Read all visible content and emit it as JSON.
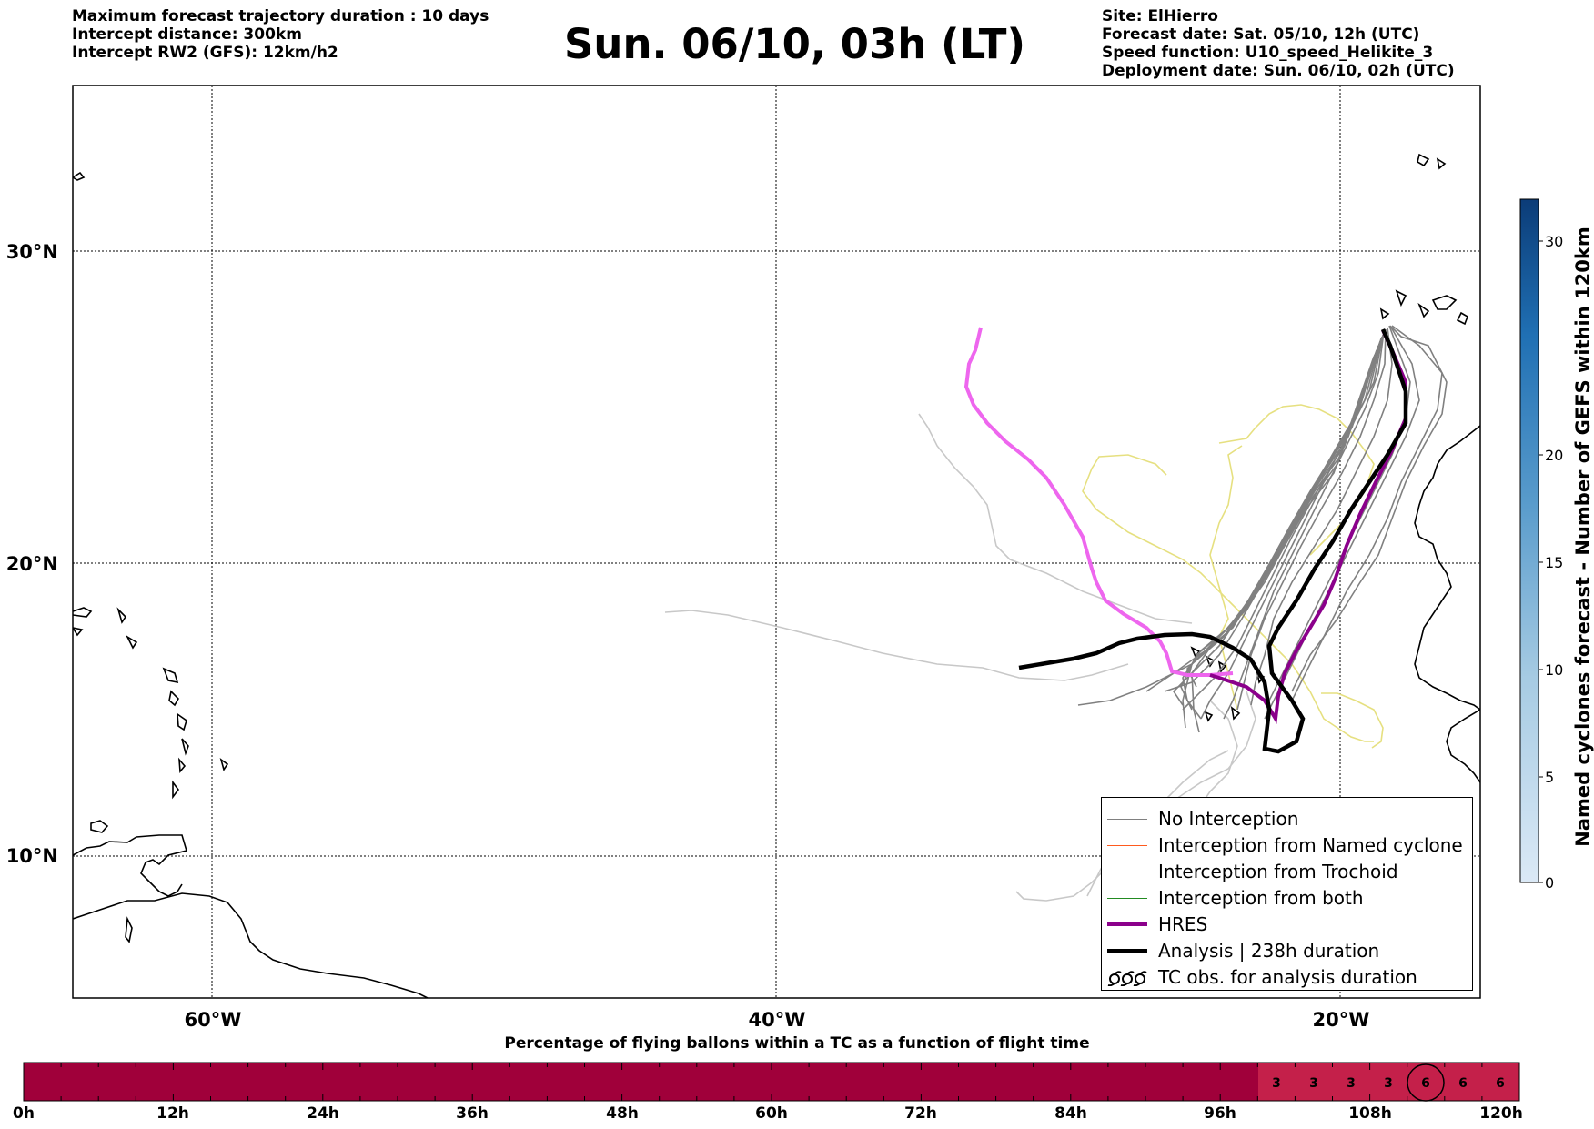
{
  "header": {
    "left_lines": [
      "Maximum forecast trajectory duration : 10 days",
      "Intercept distance: 300km",
      "Intercept RW2 (GFS):  12km/h2"
    ],
    "title": "Sun. 06/10, 03h (LT)",
    "right_lines": [
      "Site: ElHierro",
      "Forecast date: Sat. 05/10, 12h (UTC)",
      "Speed function: U10_speed_Helikite_3",
      "Deployment date: Sun. 06/10, 02h (UTC)"
    ]
  },
  "map": {
    "lat_labels": [
      "30°N",
      "20°N",
      "10°N"
    ],
    "lon_labels": [
      "60°W",
      "40°W",
      "20°W"
    ],
    "colors": {
      "no_interception": "#808080",
      "named_cyclone": "#ff5a1e",
      "trochoid": "#808000",
      "both": "#228b22",
      "hres": "#8b008b",
      "analysis": "#000000",
      "faded_track": "#c8c8c8",
      "yellow_track": "#e6e080",
      "pink_track": "#ee66ee"
    }
  },
  "legend": {
    "items": [
      {
        "label": "No Interception",
        "style": "thin",
        "color": "#808080"
      },
      {
        "label": "Interception from Named cyclone",
        "style": "thin",
        "color": "#ff5a1e"
      },
      {
        "label": "Interception from Trochoid",
        "style": "thin",
        "color": "#808000"
      },
      {
        "label": "Interception from both",
        "style": "thin",
        "color": "#228b22"
      },
      {
        "label": "HRES",
        "style": "thick",
        "color": "#8b008b"
      },
      {
        "label": "Analysis | 238h duration",
        "style": "thick",
        "color": "#000000"
      },
      {
        "label": "TC obs. for analysis duration",
        "style": "cyclone-symbols",
        "color": "#000000"
      }
    ]
  },
  "colorbar": {
    "label": "Named cyclones forecast - Number of GEFS within 120km",
    "ticks": [
      "0",
      "5",
      "10",
      "15",
      "20",
      "30"
    ]
  },
  "bottom_bar": {
    "title": "Percentage of flying ballons within a TC as a function of flight time",
    "hour_labels": [
      "0h",
      "12h",
      "24h",
      "36h",
      "48h",
      "60h",
      "72h",
      "84h",
      "96h",
      "108h",
      "120h"
    ],
    "cell_values": [
      "3",
      "3",
      "3",
      "3",
      "6",
      "6",
      "6"
    ],
    "base_color": "#a0003a",
    "highlight_color": "#c4204a"
  }
}
